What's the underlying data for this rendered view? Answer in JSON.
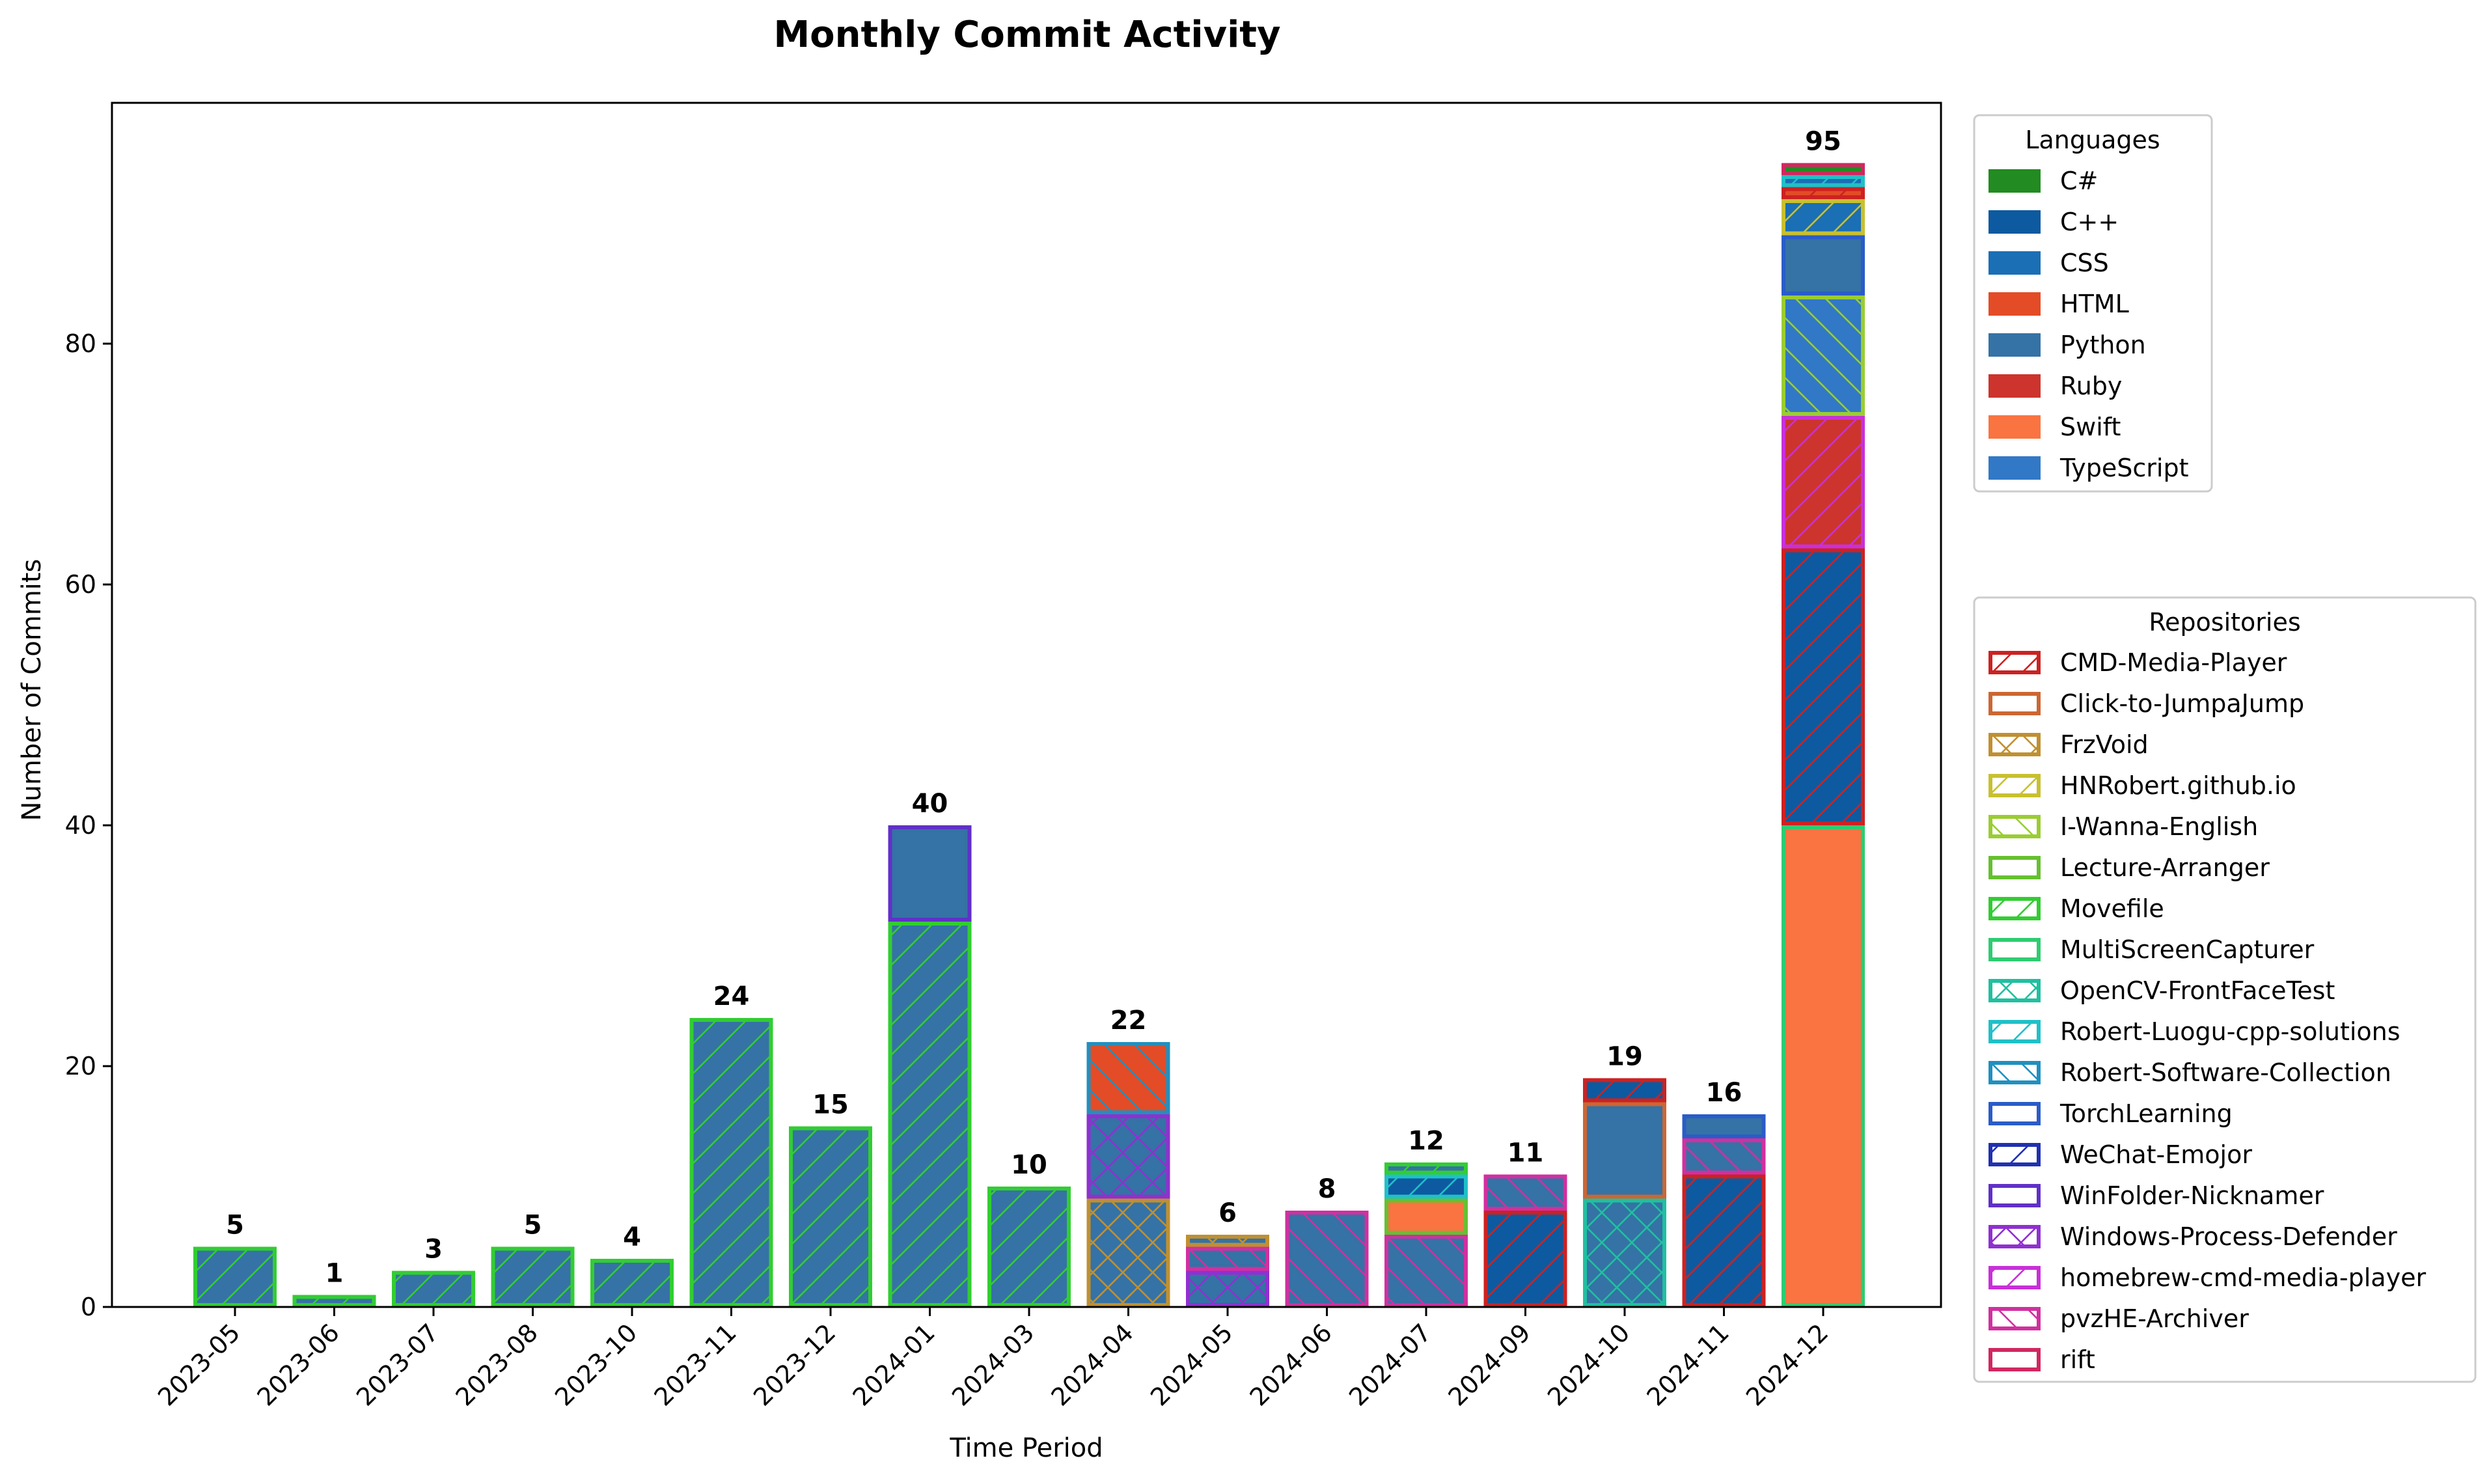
{
  "chart_data": {
    "type": "bar",
    "stacked": true,
    "title": "Monthly Commit Activity",
    "xlabel": "Time Period",
    "ylabel": "Number of Commits",
    "ylim": [
      0,
      100
    ],
    "yticks": [
      0,
      20,
      40,
      60,
      80
    ],
    "grid": false,
    "categories": [
      "2023-05",
      "2023-06",
      "2023-07",
      "2023-08",
      "2023-10",
      "2023-11",
      "2023-12",
      "2024-01",
      "2024-03",
      "2024-04",
      "2024-05",
      "2024-06",
      "2024-07",
      "2024-09",
      "2024-10",
      "2024-11",
      "2024-12"
    ],
    "totals": [
      5,
      1,
      3,
      5,
      4,
      24,
      15,
      40,
      10,
      22,
      6,
      8,
      12,
      11,
      19,
      16,
      95
    ],
    "language_colors": {
      "C#": "#228b22",
      "C++": "#0d5aa0",
      "CSS": "#1a6fb5",
      "HTML": "#e34c26",
      "Python": "#3572a5",
      "Ruby": "#cc342d",
      "Swift": "#f97441",
      "TypeScript": "#3178c6"
    },
    "repo_styles": {
      "CMD-Media-Player": {
        "color": "#cc2222",
        "hatch": "fwd"
      },
      "Click-to-JumpaJump": {
        "color": "#cc6633",
        "hatch": "none"
      },
      "FrzVoid": {
        "color": "#c09030",
        "hatch": "cross"
      },
      "HNRobert.github.io": {
        "color": "#c8c030",
        "hatch": "fwd"
      },
      "I-Wanna-English": {
        "color": "#9acd32",
        "hatch": "back"
      },
      "Lecture-Arranger": {
        "color": "#66c030",
        "hatch": "none"
      },
      "Movefile": {
        "color": "#32cd32",
        "hatch": "fwd"
      },
      "MultiScreenCapturer": {
        "color": "#2ecc71",
        "hatch": "none"
      },
      "OpenCV-FrontFaceTest": {
        "color": "#20c0a0",
        "hatch": "cross"
      },
      "Robert-Luogu-cpp-solutions": {
        "color": "#20c0c8",
        "hatch": "fwd"
      },
      "Robert-Software-Collection": {
        "color": "#2090c0",
        "hatch": "back"
      },
      "TorchLearning": {
        "color": "#2a5cc8",
        "hatch": "none"
      },
      "WeChat-Emojor": {
        "color": "#2030b0",
        "hatch": "fwd"
      },
      "WinFolder-Nicknamer": {
        "color": "#6030c8",
        "hatch": "none"
      },
      "Windows-Process-Defender": {
        "color": "#9030d0",
        "hatch": "cross"
      },
      "homebrew-cmd-media-player": {
        "color": "#c830d8",
        "hatch": "fwd"
      },
      "pvzHE-Archiver": {
        "color": "#d030a0",
        "hatch": "back"
      },
      "rift": {
        "color": "#d02860",
        "hatch": "none"
      }
    },
    "stacks": [
      [
        {
          "repo": "Movefile",
          "lang": "Python",
          "value": 5
        }
      ],
      [
        {
          "repo": "Movefile",
          "lang": "Python",
          "value": 1
        }
      ],
      [
        {
          "repo": "Movefile",
          "lang": "Python",
          "value": 3
        }
      ],
      [
        {
          "repo": "Movefile",
          "lang": "Python",
          "value": 5
        }
      ],
      [
        {
          "repo": "Movefile",
          "lang": "Python",
          "value": 4
        }
      ],
      [
        {
          "repo": "Movefile",
          "lang": "Python",
          "value": 24
        }
      ],
      [
        {
          "repo": "Movefile",
          "lang": "Python",
          "value": 15
        }
      ],
      [
        {
          "repo": "Movefile",
          "lang": "Python",
          "value": 32
        },
        {
          "repo": "WinFolder-Nicknamer",
          "lang": "Python",
          "value": 8
        }
      ],
      [
        {
          "repo": "Movefile",
          "lang": "Python",
          "value": 10
        }
      ],
      [
        {
          "repo": "FrzVoid",
          "lang": "Python",
          "value": 9
        },
        {
          "repo": "Windows-Process-Defender",
          "lang": "Python",
          "value": 7
        },
        {
          "repo": "Robert-Software-Collection",
          "lang": "HTML",
          "value": 6
        }
      ],
      [
        {
          "repo": "Windows-Process-Defender",
          "lang": "Python",
          "value": 3
        },
        {
          "repo": "pvzHE-Archiver",
          "lang": "Python",
          "value": 2
        },
        {
          "repo": "FrzVoid",
          "lang": "Python",
          "value": 1
        }
      ],
      [
        {
          "repo": "pvzHE-Archiver",
          "lang": "Python",
          "value": 8
        }
      ],
      [
        {
          "repo": "pvzHE-Archiver",
          "lang": "Python",
          "value": 6
        },
        {
          "repo": "Lecture-Arranger",
          "lang": "Swift",
          "value": 3
        },
        {
          "repo": "Robert-Luogu-cpp-solutions",
          "lang": "C++",
          "value": 2
        },
        {
          "repo": "Movefile",
          "lang": "Python",
          "value": 1
        }
      ],
      [
        {
          "repo": "CMD-Media-Player",
          "lang": "C++",
          "value": 8
        },
        {
          "repo": "pvzHE-Archiver",
          "lang": "Python",
          "value": 3
        }
      ],
      [
        {
          "repo": "OpenCV-FrontFaceTest",
          "lang": "Python",
          "value": 9
        },
        {
          "repo": "Click-to-JumpaJump",
          "lang": "Python",
          "value": 8
        },
        {
          "repo": "CMD-Media-Player",
          "lang": "C++",
          "value": 2
        }
      ],
      [
        {
          "repo": "CMD-Media-Player",
          "lang": "C++",
          "value": 11
        },
        {
          "repo": "pvzHE-Archiver",
          "lang": "Python",
          "value": 3
        },
        {
          "repo": "TorchLearning",
          "lang": "Python",
          "value": 2
        }
      ],
      [
        {
          "repo": "MultiScreenCapturer",
          "lang": "Swift",
          "value": 40
        },
        {
          "repo": "CMD-Media-Player",
          "lang": "C++",
          "value": 23
        },
        {
          "repo": "homebrew-cmd-media-player",
          "lang": "Ruby",
          "value": 11
        },
        {
          "repo": "I-Wanna-English",
          "lang": "TypeScript",
          "value": 10
        },
        {
          "repo": "TorchLearning",
          "lang": "Python",
          "value": 5
        },
        {
          "repo": "HNRobert.github.io",
          "lang": "CSS",
          "value": 3
        },
        {
          "repo": "CMD-Media-Player",
          "lang": "HTML",
          "value": 1
        },
        {
          "repo": "Robert-Luogu-cpp-solutions",
          "lang": "CSS",
          "value": 1
        },
        {
          "repo": "rift",
          "lang": "C#",
          "value": 1
        }
      ]
    ],
    "legend_languages_title": "Languages",
    "legend_languages": [
      "C#",
      "C++",
      "CSS",
      "HTML",
      "Python",
      "Ruby",
      "Swift",
      "TypeScript"
    ],
    "legend_repos_title": "Repositories",
    "legend_repos": [
      "CMD-Media-Player",
      "Click-to-JumpaJump",
      "FrzVoid",
      "HNRobert.github.io",
      "I-Wanna-English",
      "Lecture-Arranger",
      "Movefile",
      "MultiScreenCapturer",
      "OpenCV-FrontFaceTest",
      "Robert-Luogu-cpp-solutions",
      "Robert-Software-Collection",
      "TorchLearning",
      "WeChat-Emojor",
      "WinFolder-Nicknamer",
      "Windows-Process-Defender",
      "homebrew-cmd-media-player",
      "pvzHE-Archiver",
      "rift"
    ],
    "legend_placement": "right"
  }
}
